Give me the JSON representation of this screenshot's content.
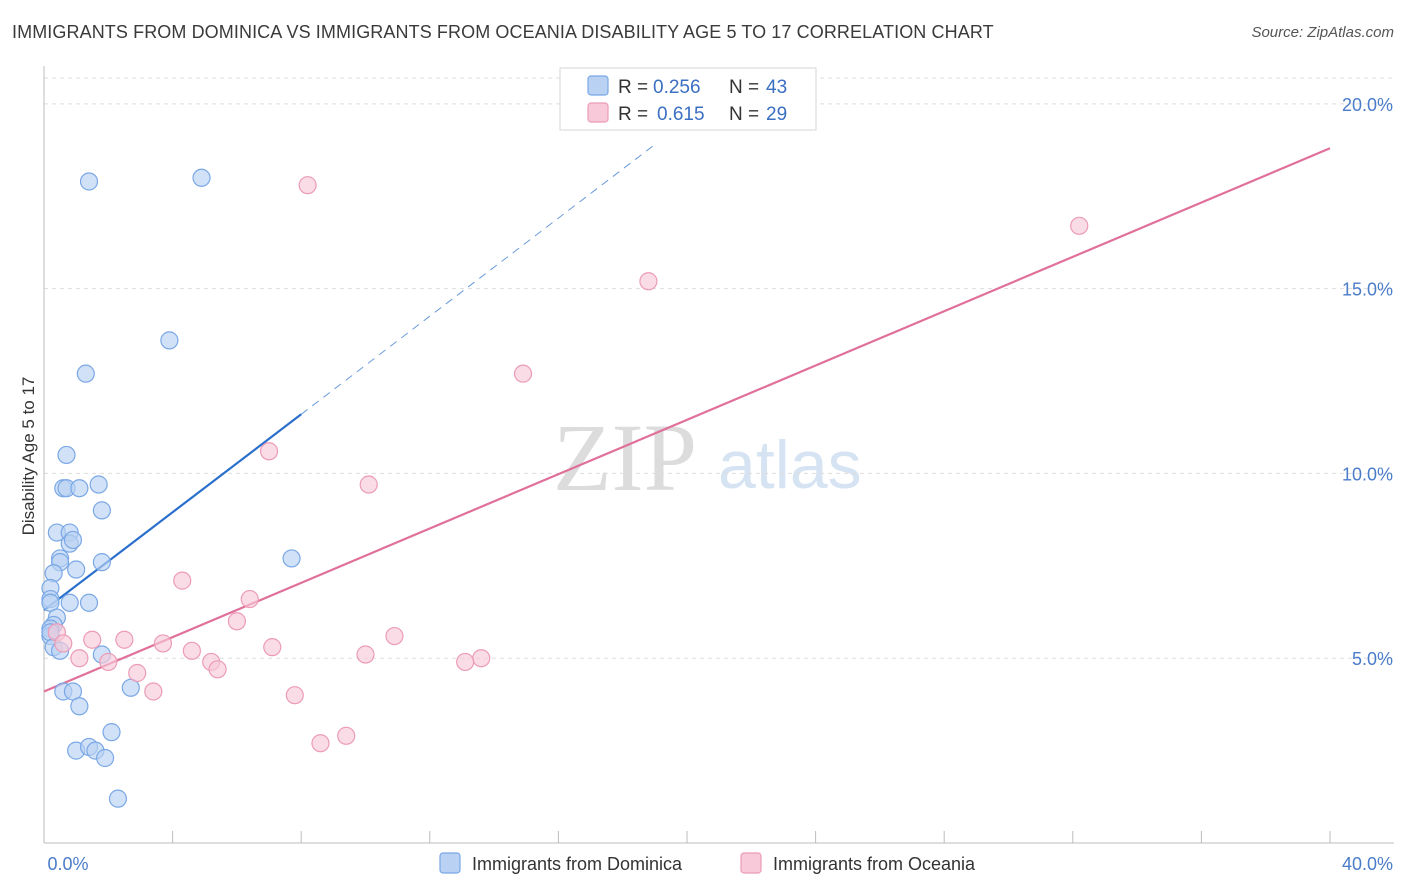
{
  "title": "IMMIGRANTS FROM DOMINICA VS IMMIGRANTS FROM OCEANIA DISABILITY AGE 5 TO 17 CORRELATION CHART",
  "source": "Source: ZipAtlas.com",
  "watermark": {
    "part1": "ZIP",
    "part2": "atlas"
  },
  "chart_data": {
    "type": "scatter",
    "title": "IMMIGRANTS FROM DOMINICA VS IMMIGRANTS FROM OCEANIA DISABILITY AGE 5 TO 17 CORRELATION CHART",
    "xlabel": "",
    "ylabel": "Disability Age 5 to 17",
    "xlim": [
      0,
      40
    ],
    "ylim": [
      0,
      20.7
    ],
    "x_tick_labels": [
      "0.0%",
      "40.0%"
    ],
    "y_ticks": [
      5,
      10,
      15,
      20
    ],
    "y_tick_labels": [
      "5.0%",
      "10.0%",
      "15.0%",
      "20.0%"
    ],
    "legend": {
      "position": "top-center",
      "entries": [
        {
          "r_label": "R =",
          "r": "0.256",
          "n_label": "N =",
          "n": "43"
        },
        {
          "r_label": "R =",
          "r": "0.615",
          "n_label": "N =",
          "n": "29"
        }
      ]
    },
    "series": [
      {
        "name": "Immigrants from Dominica",
        "color": "#7aa8e6",
        "fill": "#b9d1f2",
        "line_color": "#2a6fcb",
        "trend": {
          "x0": 0.0,
          "y0": 6.3,
          "x1": 8.0,
          "y1": 11.6,
          "dash_to_x": 19.0,
          "dash_to_y": 18.9
        },
        "points": [
          [
            1.4,
            17.9
          ],
          [
            4.9,
            18.0
          ],
          [
            3.9,
            13.6
          ],
          [
            1.3,
            12.7
          ],
          [
            0.7,
            10.5
          ],
          [
            0.6,
            9.6
          ],
          [
            0.7,
            9.6
          ],
          [
            1.1,
            9.6
          ],
          [
            1.7,
            9.7
          ],
          [
            1.8,
            9.0
          ],
          [
            0.4,
            8.4
          ],
          [
            0.8,
            8.4
          ],
          [
            0.8,
            8.1
          ],
          [
            0.9,
            8.2
          ],
          [
            0.5,
            7.7
          ],
          [
            0.5,
            7.6
          ],
          [
            1.8,
            7.6
          ],
          [
            1.0,
            7.4
          ],
          [
            7.7,
            7.7
          ],
          [
            0.3,
            7.3
          ],
          [
            0.2,
            6.9
          ],
          [
            0.2,
            6.6
          ],
          [
            0.2,
            6.5
          ],
          [
            1.4,
            6.5
          ],
          [
            0.8,
            6.5
          ],
          [
            0.4,
            6.1
          ],
          [
            0.3,
            5.9
          ],
          [
            0.2,
            5.8
          ],
          [
            0.2,
            5.6
          ],
          [
            0.2,
            5.7
          ],
          [
            0.3,
            5.3
          ],
          [
            0.5,
            5.2
          ],
          [
            1.8,
            5.1
          ],
          [
            0.6,
            4.1
          ],
          [
            0.9,
            4.1
          ],
          [
            2.7,
            4.2
          ],
          [
            1.1,
            3.7
          ],
          [
            2.1,
            3.0
          ],
          [
            1.0,
            2.5
          ],
          [
            1.4,
            2.6
          ],
          [
            1.6,
            2.5
          ],
          [
            1.9,
            2.3
          ],
          [
            2.3,
            1.2
          ]
        ]
      },
      {
        "name": "Immigrants from Oceania",
        "color": "#ec9bb6",
        "fill": "#f8cad9",
        "line_color": "#e0709a",
        "trend": {
          "x0": 0.0,
          "y0": 4.1,
          "x1": 40.0,
          "y1": 18.8
        },
        "points": [
          [
            8.2,
            17.8
          ],
          [
            32.2,
            16.7
          ],
          [
            18.8,
            15.2
          ],
          [
            14.9,
            12.7
          ],
          [
            7.0,
            10.6
          ],
          [
            10.1,
            9.7
          ],
          [
            4.3,
            7.1
          ],
          [
            6.4,
            6.6
          ],
          [
            6.0,
            6.0
          ],
          [
            10.9,
            5.6
          ],
          [
            0.4,
            5.7
          ],
          [
            0.6,
            5.4
          ],
          [
            1.5,
            5.5
          ],
          [
            2.5,
            5.5
          ],
          [
            3.7,
            5.4
          ],
          [
            7.1,
            5.3
          ],
          [
            4.6,
            5.2
          ],
          [
            10.0,
            5.1
          ],
          [
            13.6,
            5.0
          ],
          [
            1.1,
            5.0
          ],
          [
            2.0,
            4.9
          ],
          [
            5.2,
            4.9
          ],
          [
            13.1,
            4.9
          ],
          [
            5.4,
            4.7
          ],
          [
            2.9,
            4.6
          ],
          [
            3.4,
            4.1
          ],
          [
            7.8,
            4.0
          ],
          [
            8.6,
            2.7
          ],
          [
            9.4,
            2.9
          ]
        ]
      }
    ]
  }
}
